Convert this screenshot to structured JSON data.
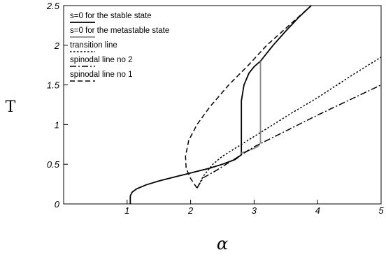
{
  "chart_data": {
    "type": "line",
    "xlabel": "α",
    "ylabel": "T",
    "xlim": [
      0,
      5
    ],
    "ylim": [
      0,
      2.5
    ],
    "x_ticks": [
      {
        "value": 1,
        "label": "1"
      },
      {
        "value": 2,
        "label": "2"
      },
      {
        "value": 3,
        "label": "3"
      },
      {
        "value": 4,
        "label": "4"
      },
      {
        "value": 5,
        "label": "5"
      }
    ],
    "y_ticks": [
      {
        "value": 0,
        "label": "0"
      },
      {
        "value": 0.5,
        "label": "0.5"
      },
      {
        "value": 1,
        "label": "1"
      },
      {
        "value": 1.5,
        "label": "1.5"
      },
      {
        "value": 2,
        "label": "2"
      },
      {
        "value": 2.5,
        "label": "2.5"
      }
    ],
    "legend_position": "top-left",
    "grid": false,
    "series": [
      {
        "name": "s=0 for the stable state",
        "style": "solid",
        "color": "#000000",
        "points": [
          [
            1.05,
            0
          ],
          [
            1.05,
            0.1
          ],
          [
            1.08,
            0.15
          ],
          [
            1.15,
            0.19
          ],
          [
            1.3,
            0.24
          ],
          [
            1.5,
            0.29
          ],
          [
            1.7,
            0.33
          ],
          [
            1.9,
            0.37
          ],
          [
            2.1,
            0.41
          ],
          [
            2.3,
            0.45
          ],
          [
            2.5,
            0.5
          ],
          [
            2.7,
            0.56
          ],
          [
            2.8,
            0.62
          ],
          [
            2.8,
            1.3
          ],
          [
            2.84,
            1.5
          ],
          [
            2.92,
            1.65
          ],
          [
            3.0,
            1.73
          ],
          [
            3.1,
            1.8
          ],
          [
            3.3,
            2.0
          ],
          [
            3.5,
            2.18
          ],
          [
            3.7,
            2.35
          ],
          [
            3.9,
            2.5
          ]
        ]
      },
      {
        "name": "s=0 for the metastable state",
        "style": "solid",
        "color": "#888888",
        "points": [
          [
            2.8,
            0.64
          ],
          [
            2.9,
            0.67
          ],
          [
            3.0,
            0.7
          ],
          [
            3.07,
            0.73
          ],
          [
            3.1,
            0.78
          ],
          [
            3.1,
            1.8
          ]
        ]
      },
      {
        "name": "transition line",
        "style": "dotted",
        "color": "#000000",
        "points": [
          [
            2.1,
            0.2
          ],
          [
            2.2,
            0.35
          ],
          [
            2.35,
            0.5
          ],
          [
            2.5,
            0.6
          ],
          [
            2.8,
            0.75
          ],
          [
            3.2,
            0.95
          ],
          [
            3.6,
            1.15
          ],
          [
            4.0,
            1.34
          ],
          [
            4.5,
            1.6
          ],
          [
            5.0,
            1.85
          ]
        ]
      },
      {
        "name": "spinodal line no 2",
        "style": "dashdot",
        "color": "#000000",
        "points": [
          [
            2.1,
            0.2
          ],
          [
            2.2,
            0.33
          ],
          [
            2.4,
            0.42
          ],
          [
            2.6,
            0.52
          ],
          [
            2.8,
            0.62
          ],
          [
            3.0,
            0.72
          ],
          [
            3.5,
            0.92
          ],
          [
            4.0,
            1.12
          ],
          [
            4.5,
            1.31
          ],
          [
            5.0,
            1.5
          ]
        ]
      },
      {
        "name": "spinodal line no 1",
        "style": "dashed",
        "color": "#000000",
        "points": [
          [
            2.1,
            0.2
          ],
          [
            2.0,
            0.32
          ],
          [
            1.93,
            0.45
          ],
          [
            1.92,
            0.6
          ],
          [
            1.97,
            0.8
          ],
          [
            2.1,
            1.0
          ],
          [
            2.3,
            1.22
          ],
          [
            2.6,
            1.5
          ],
          [
            2.9,
            1.74
          ],
          [
            3.2,
            2.0
          ],
          [
            3.55,
            2.25
          ],
          [
            3.9,
            2.5
          ]
        ]
      }
    ]
  }
}
